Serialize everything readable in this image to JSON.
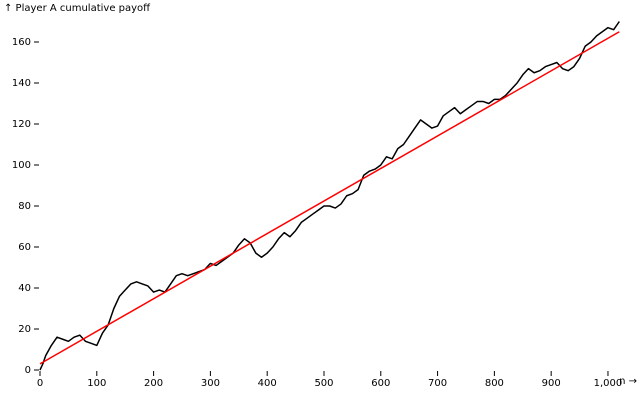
{
  "chart_data": {
    "type": "line",
    "y_label": "↑ Player A cumulative payoff",
    "x_label": "n →",
    "series": [
      {
        "color": "#000000",
        "x": [
          0,
          5,
          10,
          20,
          30,
          40,
          50,
          60,
          70,
          80,
          90,
          100,
          110,
          120,
          130,
          140,
          150,
          160,
          170,
          180,
          190,
          200,
          210,
          220,
          230,
          240,
          250,
          260,
          270,
          280,
          290,
          300,
          310,
          320,
          330,
          340,
          350,
          360,
          370,
          380,
          390,
          400,
          410,
          420,
          430,
          440,
          450,
          460,
          470,
          480,
          490,
          500,
          510,
          520,
          530,
          540,
          550,
          560,
          570,
          580,
          590,
          600,
          610,
          620,
          630,
          640,
          650,
          660,
          670,
          680,
          690,
          700,
          710,
          720,
          730,
          740,
          750,
          760,
          770,
          780,
          790,
          800,
          810,
          820,
          830,
          840,
          850,
          860,
          870,
          880,
          890,
          900,
          910,
          920,
          930,
          940,
          950,
          960,
          970,
          980,
          990,
          1000,
          1010,
          1020
        ],
        "values": [
          0,
          3,
          7,
          12,
          16,
          15,
          14,
          16,
          17,
          14,
          13,
          12,
          18,
          22,
          30,
          36,
          39,
          42,
          43,
          42,
          41,
          38,
          39,
          38,
          42,
          46,
          47,
          46,
          47,
          48,
          49,
          52,
          51,
          53,
          55,
          57,
          61,
          64,
          62,
          57,
          55,
          57,
          60,
          64,
          67,
          65,
          68,
          72,
          74,
          76,
          78,
          80,
          80,
          79,
          81,
          85,
          86,
          88,
          95,
          97,
          98,
          100,
          104,
          103,
          108,
          110,
          114,
          118,
          122,
          120,
          118,
          119,
          124,
          126,
          128,
          125,
          127,
          129,
          131,
          131,
          130,
          132,
          132,
          134,
          137,
          140,
          144,
          147,
          145,
          146,
          148,
          149,
          150,
          147,
          146,
          148,
          152,
          158,
          160,
          163,
          165,
          167,
          166,
          170
        ]
      },
      {
        "color": "#ff0000",
        "x": [
          0,
          1020
        ],
        "values": [
          3,
          165
        ]
      }
    ],
    "xlim": [
      0,
      1024
    ],
    "xticks": [
      0,
      100,
      200,
      300,
      400,
      500,
      600,
      700,
      800,
      900,
      {
        "value": 1000,
        "label": "1,000"
      }
    ],
    "ylim": [
      0,
      170
    ],
    "yticks": [
      0,
      20,
      40,
      60,
      80,
      100,
      120,
      140,
      160
    ]
  }
}
